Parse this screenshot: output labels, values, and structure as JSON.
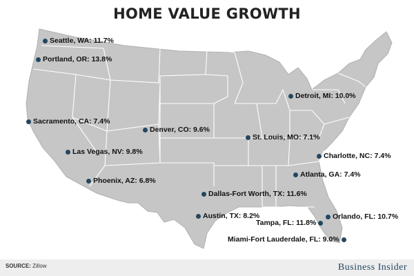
{
  "title": "HOME VALUE GROWTH",
  "source": {
    "label": "SOURCE:",
    "value": "Zillow"
  },
  "brand": "Business Insider",
  "colors": {
    "land": "#c6c6c6",
    "border": "#ffffff",
    "dot": "#23475f",
    "footer": "#eeeeee"
  },
  "cities": [
    {
      "label": "Seattle, WA: 11.7%"
    },
    {
      "label": "Portland, OR: 13.8%"
    },
    {
      "label": "Sacramento, CA: 7.4%"
    },
    {
      "label": "Las Vegas, NV: 9.8%"
    },
    {
      "label": "Phoenix, AZ: 6.8%"
    },
    {
      "label": "Denver, CO: 9.6%"
    },
    {
      "label": "Dallas-Fort Worth, TX: 11.6%"
    },
    {
      "label": "Austin, TX: 8.2%"
    },
    {
      "label": "St. Louis, MO: 7.1%"
    },
    {
      "label": "Detroit, MI: 10.0%"
    },
    {
      "label": "Charlotte, NC: 7.4%"
    },
    {
      "label": "Atlanta, GA: 7.4%"
    },
    {
      "label": "Orlando, FL: 10.7%"
    },
    {
      "label": "Tampa, FL: 11.8%"
    },
    {
      "label": "Miami-Fort Lauderdale, FL: 9.0%"
    }
  ]
}
